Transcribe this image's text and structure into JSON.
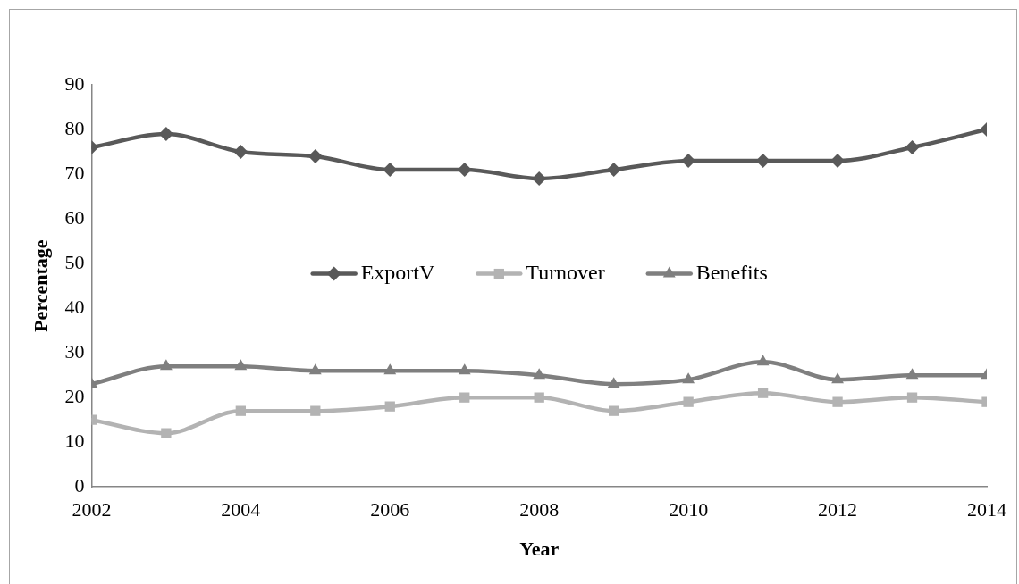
{
  "chart_data": {
    "type": "line",
    "xlabel": "Year",
    "ylabel": "Percentage",
    "x": [
      2002,
      2003,
      2004,
      2005,
      2006,
      2007,
      2008,
      2009,
      2010,
      2011,
      2012,
      2013,
      2014
    ],
    "series": [
      {
        "name": "ExportV",
        "color": "#595959",
        "marker": "diamond",
        "values": [
          76,
          79,
          75,
          74,
          71,
          71,
          69,
          71,
          73,
          73,
          73,
          76,
          80
        ]
      },
      {
        "name": "Turnover",
        "color": "#b3b3b3",
        "marker": "square",
        "values": [
          15,
          12,
          17,
          17,
          18,
          20,
          20,
          17,
          19,
          21,
          19,
          20,
          19
        ]
      },
      {
        "name": "Benefits",
        "color": "#7f7f7f",
        "marker": "triangle",
        "values": [
          23,
          27,
          27,
          26,
          26,
          26,
          25,
          23,
          24,
          28,
          24,
          25,
          25
        ]
      }
    ],
    "xlim": [
      2002,
      2014
    ],
    "xticks": [
      2002,
      2004,
      2006,
      2008,
      2010,
      2012,
      2014
    ],
    "ylim": [
      0,
      90
    ],
    "yticks": [
      0,
      10,
      20,
      30,
      40,
      50,
      60,
      70,
      80,
      90
    ],
    "grid": false,
    "legend": "center",
    "line_style": "solid"
  }
}
